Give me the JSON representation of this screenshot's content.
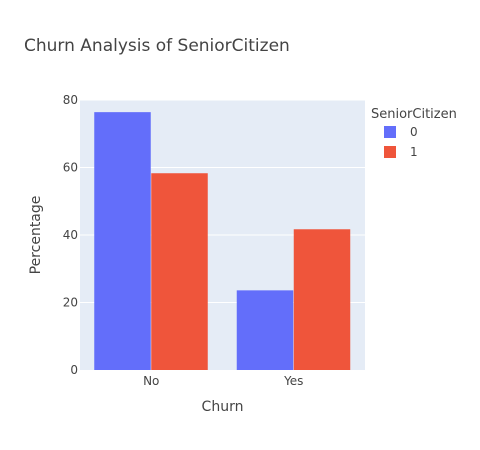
{
  "chart_data": {
    "type": "bar",
    "title": "Churn Analysis of SeniorCitizen",
    "xlabel": "Churn",
    "ylabel": "Percentage",
    "categories": [
      "No",
      "Yes"
    ],
    "ylim": [
      0,
      80
    ],
    "yticks": [
      0,
      20,
      40,
      60,
      80
    ],
    "grid": true,
    "legend": {
      "title": "SeniorCitizen",
      "placement": "top-right"
    },
    "series": [
      {
        "name": "0",
        "values": [
          76.4,
          23.6
        ],
        "color": "#636efa"
      },
      {
        "name": "1",
        "values": [
          58.3,
          41.7
        ],
        "color": "#ef553b"
      }
    ]
  },
  "colors": {
    "plot_bg": "#e5ecf6",
    "grid": "#ffffff",
    "text": "#444444",
    "title": "#444444"
  }
}
